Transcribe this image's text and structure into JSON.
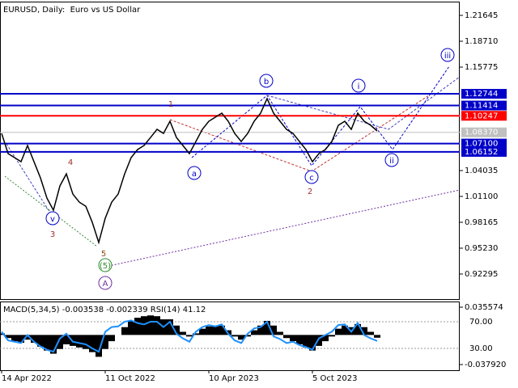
{
  "chart_data": [
    {
      "type": "line",
      "title": "EURUSD, Daily:  Euro vs US Dollar",
      "categories": [
        "14 Apr 2022",
        null,
        null,
        null,
        null,
        null,
        null,
        null,
        null,
        null,
        null,
        null,
        null,
        null,
        null,
        null,
        "11 Oct 2022",
        null,
        null,
        null,
        null,
        null,
        null,
        null,
        null,
        null,
        null,
        null,
        null,
        null,
        null,
        null,
        "10 Apr 2023",
        null,
        null,
        null,
        null,
        null,
        null,
        null,
        null,
        null,
        null,
        null,
        null,
        null,
        null,
        null,
        "5 Oct 2023",
        null,
        null,
        null,
        null,
        null,
        null,
        null,
        null,
        null,
        null
      ],
      "series": [
        {
          "color": "#000000",
          "values": [
            1.0825,
            1.0596,
            1.055,
            1.0504,
            1.0688,
            1.0504,
            1.032,
            1.0091,
            0.9953,
            1.0229,
            1.0366,
            1.0137,
            1.0045,
            0.9999,
            0.9816,
            0.9587,
            0.9862,
            1.0045,
            1.0137,
            1.0366,
            1.055,
            1.0642,
            1.0688,
            1.0779,
            1.0871,
            1.0825,
            1.0963,
            1.0779,
            1.0688,
            1.0596,
            1.0733,
            1.0871,
            1.0963,
            1.1009,
            1.1055,
            1.0963,
            1.0825,
            1.0733,
            1.0825,
            1.0963,
            1.1055,
            1.122,
            1.1055,
            1.0963,
            1.0871,
            1.0825,
            1.0733,
            1.0642,
            1.0504,
            1.0596,
            1.0642,
            1.0733,
            1.0917,
            1.0963,
            1.0871,
            1.1055,
            1.0963,
            1.0917,
            1.0853
          ]
        }
      ],
      "ylim": [
        0.8945,
        1.2339
      ],
      "yticks": [
        {
          "value": 1.21645,
          "label": "1.21645"
        },
        {
          "value": 1.1871,
          "label": "1.18710"
        },
        {
          "value": 1.15775,
          "label": "1.15775"
        },
        {
          "value": 1.04035,
          "label": "1.04035"
        },
        {
          "value": 1.011,
          "label": "1.01100"
        },
        {
          "value": 0.98165,
          "label": "0.98165"
        },
        {
          "value": 0.9523,
          "label": "0.95230"
        },
        {
          "value": 0.92295,
          "label": "0.92295"
        }
      ],
      "levels": [
        {
          "value": 1.12744,
          "label": "1.12744",
          "color": "#0000c8"
        },
        {
          "value": 1.11414,
          "label": "1.11414",
          "color": "#0000c8"
        },
        {
          "value": 1.10247,
          "label": "1.10247",
          "color": "#ff0000"
        },
        {
          "value": 1.0837,
          "label": "1.08370",
          "color": "#c0c0c0"
        },
        {
          "value": 1.071,
          "label": "1.07100",
          "color": "#0000c8"
        },
        {
          "value": 1.06152,
          "label": "1.06152",
          "color": "#0000c8"
        }
      ],
      "annotations": [
        "iii",
        "b",
        "i",
        "1",
        "a",
        "c",
        "2",
        "ii",
        "4",
        "v",
        "3",
        "5",
        "(5)",
        "A"
      ]
    },
    {
      "type": "macd",
      "title": "MACD(5,34,5) -0.003538 -0.002339 RSI(14) 41.12",
      "series": [
        {
          "color": "#000000",
          "values": [
            0.002,
            -0.004,
            -0.008,
            -0.01,
            -0.006,
            -0.01,
            -0.015,
            -0.02,
            -0.024,
            -0.018,
            -0.012,
            -0.014,
            -0.016,
            -0.018,
            -0.022,
            -0.028,
            -0.018,
            -0.008,
            0.0,
            0.01,
            0.018,
            0.022,
            0.024,
            0.025,
            0.024,
            0.02,
            0.02,
            0.012,
            0.004,
            -0.002,
            0.002,
            0.008,
            0.011,
            0.012,
            0.012,
            0.006,
            -0.002,
            -0.006,
            -0.002,
            0.006,
            0.012,
            0.018,
            0.012,
            0.004,
            -0.004,
            -0.008,
            -0.012,
            -0.016,
            -0.02,
            -0.014,
            -0.008,
            -0.002,
            0.008,
            0.012,
            0.01,
            0.014,
            0.01,
            0.004,
            -0.003538
          ]
        },
        {
          "color": "#1e90ff",
          "axis": "y2",
          "values": [
            55,
            42,
            40,
            38,
            50,
            40,
            33,
            28,
            25,
            45,
            52,
            40,
            38,
            36,
            30,
            25,
            55,
            62,
            63,
            70,
            72,
            68,
            66,
            70,
            70,
            62,
            70,
            52,
            45,
            40,
            55,
            62,
            65,
            63,
            66,
            52,
            42,
            38,
            52,
            60,
            62,
            70,
            48,
            44,
            38,
            40,
            35,
            32,
            28,
            45,
            50,
            55,
            65,
            66,
            55,
            68,
            50,
            45,
            41.12
          ]
        }
      ],
      "ylim": [
        -0.04517,
        0.04282
      ],
      "yticks": [
        {
          "value": 0.035574,
          "label": "0.035574"
        },
        {
          "value": -0.03792,
          "label": "-0.037920"
        }
      ],
      "y2lim": [
        -2.7,
        100.3
      ],
      "y2ticks": [
        {
          "value": 70,
          "label": "70.00"
        },
        {
          "value": 30,
          "label": "30.00"
        }
      ]
    }
  ]
}
